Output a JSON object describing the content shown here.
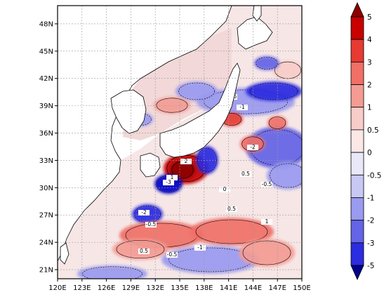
{
  "map": {
    "lon_ticks": [
      "120E",
      "123E",
      "126E",
      "129E",
      "132E",
      "135E",
      "138E",
      "141E",
      "144E",
      "147E",
      "150E"
    ],
    "lat_ticks": [
      "21N",
      "24N",
      "27N",
      "30N",
      "33N",
      "36N",
      "39N",
      "42N",
      "45N",
      "48N"
    ],
    "lon_range": [
      120,
      150
    ],
    "lat_range": [
      20,
      50
    ],
    "contour_labels": [
      "-0.5",
      "-1",
      "-2",
      "0.5",
      "1",
      "2",
      "-3",
      "0",
      "-0.5",
      "0.5",
      "-0.5",
      "1",
      "-2",
      "-1",
      "0.5",
      "-0.5"
    ]
  },
  "colorbar": {
    "levels": [
      "5",
      "4",
      "3",
      "2",
      "1",
      "0.5",
      "0",
      "-0.5",
      "-1",
      "-2",
      "-3",
      "-5"
    ],
    "colors": [
      "#8c0000",
      "#c80000",
      "#e63a32",
      "#f07068",
      "#f49c94",
      "#f8ccc8",
      "#fbe8e6",
      "#e8e8f8",
      "#c8c8f4",
      "#9a9af0",
      "#6464e6",
      "#2c2ce0",
      "#0000c8",
      "#00008c"
    ]
  },
  "colors": {
    "land": "#ffffff",
    "coast": "#000000",
    "grid": "#9a9a9a",
    "neutral_sea": "#f6e6e6"
  }
}
